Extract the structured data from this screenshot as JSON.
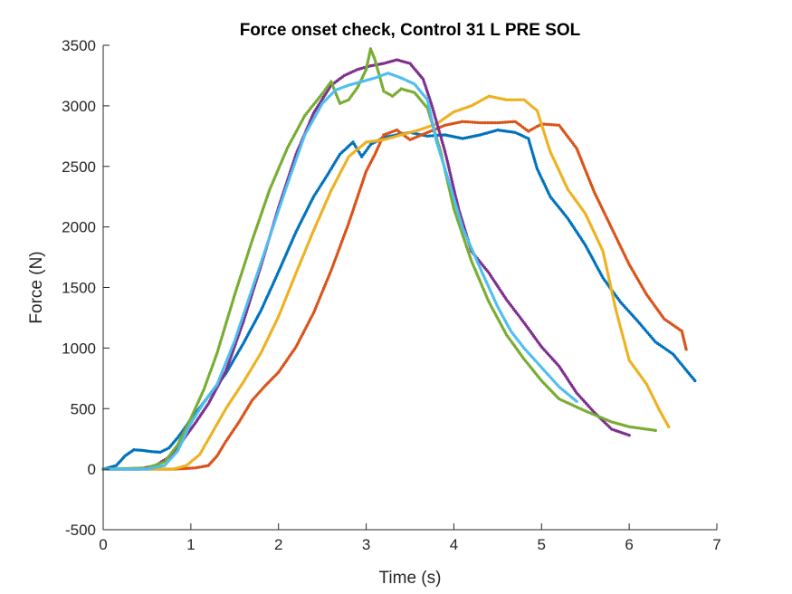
{
  "chart_data": {
    "type": "scatter",
    "title": "Force onset check, Control 31 L PRE SOL",
    "xlabel": "Time (s)",
    "ylabel": "Force (N)",
    "xlim": [
      0,
      7
    ],
    "ylim": [
      -500,
      3500
    ],
    "xticks": [
      "0",
      "1",
      "2",
      "3",
      "4",
      "5",
      "6",
      "7"
    ],
    "yticks": [
      "-500",
      "0",
      "500",
      "1000",
      "1500",
      "2000",
      "2500",
      "3000",
      "3500"
    ],
    "grid": false,
    "series": [
      {
        "color": "#0072BD",
        "x": [
          0,
          0.15,
          0.25,
          0.35,
          0.45,
          0.55,
          0.65,
          0.75,
          0.85,
          0.95,
          1.05,
          1.2,
          1.4,
          1.6,
          1.8,
          2.0,
          2.2,
          2.4,
          2.55,
          2.7,
          2.85,
          2.95,
          3.05,
          3.2,
          3.35,
          3.5,
          3.7,
          3.9,
          4.1,
          4.3,
          4.5,
          4.7,
          4.85,
          4.95,
          5.1,
          5.3,
          5.5,
          5.7,
          5.9,
          6.1,
          6.3,
          6.5,
          6.75
        ],
        "y": [
          0,
          30,
          110,
          160,
          155,
          145,
          140,
          175,
          260,
          360,
          460,
          600,
          790,
          1040,
          1310,
          1630,
          1960,
          2250,
          2420,
          2600,
          2700,
          2580,
          2680,
          2740,
          2760,
          2780,
          2750,
          2760,
          2730,
          2760,
          2800,
          2780,
          2730,
          2480,
          2250,
          2070,
          1850,
          1580,
          1380,
          1220,
          1050,
          950,
          730
        ]
      },
      {
        "color": "#D95319",
        "x": [
          0,
          0.4,
          0.8,
          1.05,
          1.2,
          1.3,
          1.4,
          1.55,
          1.7,
          1.85,
          2.0,
          2.2,
          2.4,
          2.6,
          2.8,
          3.0,
          3.1,
          3.2,
          3.35,
          3.5,
          3.7,
          3.9,
          4.1,
          4.3,
          4.5,
          4.7,
          4.85,
          5.0,
          5.2,
          5.4,
          5.6,
          5.8,
          6.0,
          6.2,
          6.4,
          6.6,
          6.65
        ],
        "y": [
          0,
          0,
          0,
          10,
          30,
          110,
          230,
          390,
          570,
          690,
          800,
          1010,
          1290,
          1640,
          2030,
          2460,
          2600,
          2760,
          2800,
          2720,
          2780,
          2840,
          2870,
          2860,
          2860,
          2870,
          2790,
          2850,
          2840,
          2650,
          2290,
          1990,
          1690,
          1440,
          1240,
          1140,
          990
        ]
      },
      {
        "color": "#EDB120",
        "x": [
          0,
          0.5,
          0.8,
          0.95,
          1.1,
          1.25,
          1.4,
          1.6,
          1.8,
          2.0,
          2.2,
          2.4,
          2.6,
          2.8,
          3.0,
          3.2,
          3.4,
          3.6,
          3.8,
          4.0,
          4.2,
          4.4,
          4.6,
          4.8,
          4.95,
          5.1,
          5.3,
          5.5,
          5.7,
          5.85,
          6.0,
          6.2,
          6.35,
          6.45
        ],
        "y": [
          0,
          0,
          0,
          30,
          120,
          310,
          500,
          720,
          960,
          1260,
          1620,
          1970,
          2300,
          2580,
          2700,
          2720,
          2760,
          2800,
          2850,
          2950,
          3000,
          3080,
          3050,
          3050,
          2960,
          2620,
          2310,
          2110,
          1800,
          1310,
          900,
          700,
          480,
          350
        ]
      },
      {
        "color": "#7E2F8E",
        "x": [
          0,
          0.4,
          0.6,
          0.75,
          0.9,
          1.05,
          1.2,
          1.4,
          1.6,
          1.8,
          2.0,
          2.2,
          2.4,
          2.6,
          2.75,
          2.9,
          3.05,
          3.2,
          3.35,
          3.5,
          3.65,
          3.75,
          3.9,
          4.05,
          4.2,
          4.4,
          4.6,
          4.8,
          5.0,
          5.2,
          5.4,
          5.6,
          5.8,
          6.0
        ],
        "y": [
          0,
          0,
          30,
          100,
          230,
          380,
          540,
          810,
          1220,
          1680,
          2160,
          2600,
          2940,
          3170,
          3250,
          3300,
          3330,
          3350,
          3380,
          3350,
          3220,
          3000,
          2620,
          2160,
          1800,
          1620,
          1400,
          1210,
          1010,
          850,
          630,
          470,
          330,
          280
        ]
      },
      {
        "color": "#77AC30",
        "x": [
          0,
          0.5,
          0.7,
          0.85,
          1.0,
          1.15,
          1.3,
          1.5,
          1.7,
          1.9,
          2.1,
          2.3,
          2.5,
          2.6,
          2.7,
          2.8,
          2.9,
          3.0,
          3.05,
          3.1,
          3.2,
          3.3,
          3.4,
          3.55,
          3.7,
          3.85,
          4.0,
          4.2,
          4.4,
          4.6,
          4.8,
          5.0,
          5.2,
          5.5,
          5.8,
          6.0,
          6.3
        ],
        "y": [
          0,
          10,
          60,
          200,
          420,
          660,
          960,
          1440,
          1890,
          2310,
          2650,
          2920,
          3100,
          3200,
          3020,
          3050,
          3150,
          3300,
          3470,
          3380,
          3120,
          3080,
          3140,
          3110,
          2980,
          2620,
          2150,
          1720,
          1380,
          1110,
          910,
          730,
          580,
          480,
          390,
          350,
          320
        ]
      },
      {
        "color": "#4DBEEE",
        "x": [
          0,
          0.5,
          0.7,
          0.85,
          1.0,
          1.15,
          1.3,
          1.5,
          1.7,
          1.9,
          2.1,
          2.3,
          2.5,
          2.65,
          2.8,
          2.95,
          3.1,
          3.25,
          3.4,
          3.55,
          3.7,
          3.8,
          3.95,
          4.1,
          4.3,
          4.5,
          4.65,
          4.8,
          5.0,
          5.2,
          5.4
        ],
        "y": [
          0,
          0,
          30,
          150,
          380,
          550,
          700,
          1060,
          1490,
          1920,
          2350,
          2760,
          3020,
          3130,
          3170,
          3200,
          3230,
          3270,
          3230,
          3180,
          3050,
          2710,
          2360,
          1990,
          1660,
          1340,
          1140,
          1000,
          840,
          680,
          560
        ]
      }
    ]
  }
}
